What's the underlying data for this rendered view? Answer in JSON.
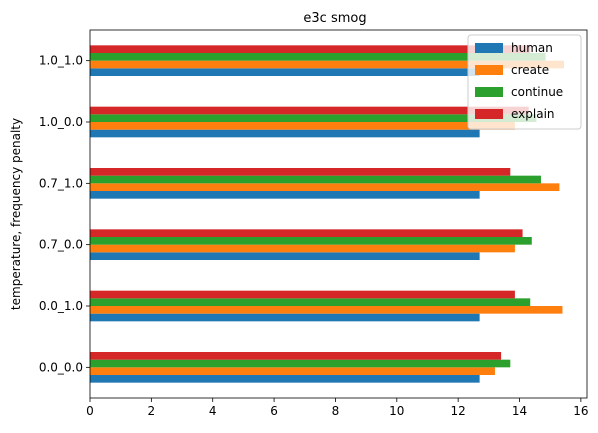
{
  "chart_data": {
    "type": "bar",
    "orientation": "horizontal",
    "title": "e3c smog",
    "xlabel": "",
    "ylabel": "temperature, frequency penalty",
    "xlim": [
      0,
      16.2
    ],
    "xticks": [
      0,
      2,
      4,
      6,
      8,
      10,
      12,
      14,
      16
    ],
    "categories": [
      "0.0_0.0",
      "0.0_1.0",
      "0.7_0.0",
      "0.7_1.0",
      "1.0_0.0",
      "1.0_1.0"
    ],
    "series": [
      {
        "name": "human",
        "color": "#1f77b4",
        "values": [
          12.7,
          12.7,
          12.7,
          12.7,
          12.7,
          12.7
        ]
      },
      {
        "name": "create",
        "color": "#ff7f0e",
        "values": [
          13.2,
          15.4,
          13.85,
          15.3,
          13.85,
          15.45
        ]
      },
      {
        "name": "continue",
        "color": "#2ca02c",
        "values": [
          13.7,
          14.35,
          14.4,
          14.7,
          14.55,
          14.85
        ]
      },
      {
        "name": "explain",
        "color": "#d62728",
        "values": [
          13.4,
          13.85,
          14.1,
          13.7,
          14.3,
          14.35
        ]
      }
    ],
    "legend_position": "top-right",
    "grid": false
  }
}
